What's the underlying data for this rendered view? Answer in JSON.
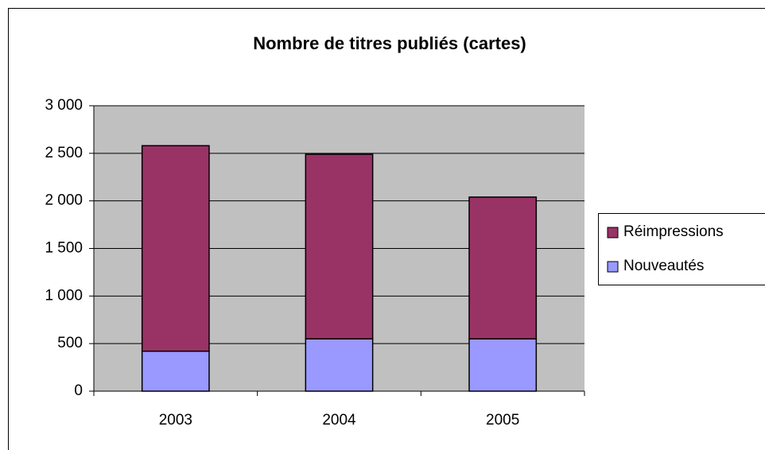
{
  "chart_data": {
    "type": "stacked_bar",
    "title": "Nombre de titres publiés (cartes)",
    "categories": [
      "2003",
      "2004",
      "2005"
    ],
    "series": [
      {
        "name": "Nouveautés",
        "color": "#9999ff",
        "values": [
          420,
          550,
          550
        ]
      },
      {
        "name": "Réimpressions",
        "color": "#993366",
        "values": [
          2160,
          1940,
          1490
        ]
      }
    ],
    "ylim": [
      0,
      3000
    ],
    "yticks": [
      0,
      500,
      {
        "value": 1000,
        "label": "1 000"
      },
      {
        "value": 1500,
        "label": "1 500"
      },
      {
        "value": 2000,
        "label": "2 000"
      },
      {
        "value": 2500,
        "label": "2 500"
      },
      {
        "value": 3000,
        "label": "3 000"
      }
    ],
    "grid": true,
    "legend": "right"
  }
}
